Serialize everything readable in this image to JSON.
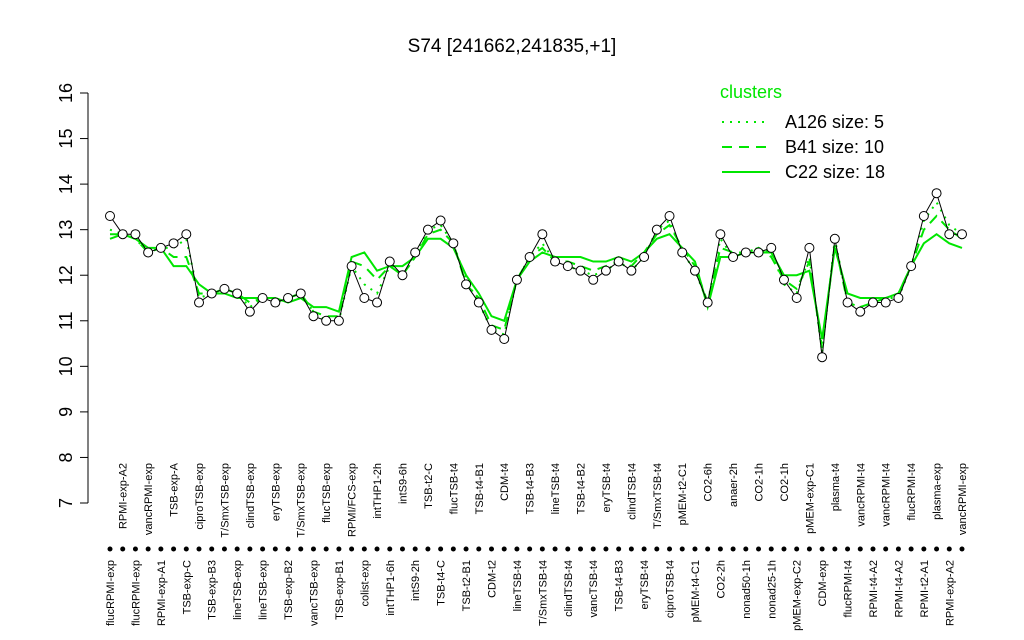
{
  "chart_data": {
    "type": "line",
    "title": "S74 [241662,241835,+1]",
    "categories": [
      "flucRPMI-exp",
      "RPMI-exp-A2",
      "flucRPMI-exp",
      "vancRPMI-exp",
      "RPMI-exp-A1",
      "TSB-exp-A",
      "TSB-exp-C",
      "ciproTSB-exp",
      "TSB-exp-B3",
      "T/SmxTSB-exp",
      "lineTSB-exp",
      "clindTSB-exp",
      "lineTSB-exp",
      "eryTSB-exp",
      "TSB-exp-B2",
      "T/SmxTSB-exp",
      "vancTSB-exp",
      "flucTSB-exp",
      "TSB-exp-B1",
      "RPMI/FCS-exp",
      "colist-exp",
      "intTHP1-2h",
      "intTHP1-6h",
      "intS9-6h",
      "intS9-2h",
      "TSB-t2-C",
      "TSB-t4-C",
      "flucTSB-t4",
      "TSB-t2-B1",
      "TSB-t4-B1",
      "CDM-t2",
      "CDM-t4",
      "lineTSB-t4",
      "TSB-t4-B3",
      "T/SmxTSB-t4",
      "lineTSB-t4",
      "clindTSB-t4",
      "TSB-t4-B2",
      "vancTSB-t4",
      "eryTSB-t4",
      "TSB-t4-B3",
      "clindTSB-t4",
      "eryTSB-t4",
      "T/SmxTSB-t4",
      "ciproTSB-t4",
      "pMEM-t2-C1",
      "pMEM-t4-C1",
      "CO2-6h",
      "CO2-2h",
      "anaer-2h",
      "nonad50-1h",
      "CO2-1h",
      "nonad25-1h",
      "CO2-1h",
      "pMEM-exp-C2",
      "pMEM-exp-C1",
      "CDM-exp",
      "plasma-t4",
      "flucRPMI-t4",
      "vancRPMI-t4",
      "RPMI-t4-A2",
      "vancRPMI-t4",
      "RPMI-t4-A2",
      "flucRPMI-t4",
      "RPMI-t2-A1",
      "plasma-exp",
      "RPMI-exp-A2",
      "vancRPMI-exp"
    ],
    "points": [
      13.3,
      12.9,
      12.9,
      12.5,
      12.6,
      12.7,
      12.9,
      11.4,
      11.6,
      11.7,
      11.6,
      11.2,
      11.5,
      11.4,
      11.5,
      11.6,
      11.1,
      11.0,
      11.0,
      12.2,
      11.5,
      11.4,
      12.3,
      12.0,
      12.5,
      13.0,
      13.2,
      12.7,
      11.8,
      11.4,
      10.8,
      10.6,
      11.9,
      12.4,
      12.9,
      12.3,
      12.2,
      12.1,
      11.9,
      12.1,
      12.3,
      12.1,
      12.4,
      13.0,
      13.3,
      12.5,
      12.1,
      11.4,
      12.9,
      12.4,
      12.5,
      12.5,
      12.6,
      11.9,
      11.5,
      12.6,
      10.2,
      12.8,
      11.4,
      11.2,
      11.4,
      11.4,
      11.5,
      12.2,
      13.3,
      13.8,
      12.9,
      12.9
    ],
    "ylim": [
      7,
      16
    ],
    "yticks": [
      7,
      8,
      9,
      10,
      11,
      12,
      13,
      14,
      15,
      16
    ],
    "legend_title": "clusters",
    "series": [
      {
        "name": "A126 size: 5",
        "color": "#00e600",
        "dash": "dotted",
        "values": [
          13.0,
          12.9,
          12.8,
          12.5,
          12.6,
          12.6,
          12.8,
          11.5,
          11.6,
          11.7,
          11.6,
          11.3,
          11.5,
          11.4,
          11.5,
          11.6,
          11.2,
          11.0,
          11.0,
          12.2,
          11.8,
          11.6,
          12.2,
          12.0,
          12.4,
          13.0,
          13.1,
          12.7,
          11.9,
          11.4,
          10.8,
          10.7,
          11.9,
          12.4,
          12.7,
          12.3,
          12.2,
          12.1,
          12.0,
          12.1,
          12.3,
          12.1,
          12.4,
          13.0,
          13.2,
          12.5,
          12.1,
          11.4,
          12.8,
          12.4,
          12.5,
          12.6,
          12.5,
          11.8,
          11.6,
          12.4,
          10.3,
          12.8,
          11.4,
          11.3,
          11.4,
          11.5,
          11.5,
          12.2,
          13.2,
          13.6,
          13.1,
          12.9
        ]
      },
      {
        "name": "B41 size: 10",
        "color": "#00e600",
        "dash": "dashed",
        "values": [
          12.9,
          12.9,
          12.8,
          12.5,
          12.6,
          12.4,
          12.4,
          11.6,
          11.6,
          11.7,
          11.6,
          11.4,
          11.5,
          11.4,
          11.5,
          11.6,
          11.2,
          11.1,
          11.1,
          12.3,
          12.2,
          11.9,
          12.2,
          12.0,
          12.4,
          12.9,
          13.0,
          12.7,
          11.8,
          11.5,
          10.9,
          10.8,
          11.9,
          12.4,
          12.6,
          12.3,
          12.3,
          12.2,
          12.1,
          12.2,
          12.3,
          12.2,
          12.5,
          12.9,
          13.1,
          12.6,
          12.2,
          11.4,
          12.6,
          12.5,
          12.5,
          12.6,
          12.4,
          11.9,
          11.7,
          12.3,
          10.4,
          12.7,
          11.4,
          11.3,
          11.4,
          11.5,
          11.6,
          12.2,
          13.0,
          13.3,
          13.0,
          12.8
        ]
      },
      {
        "name": "C22 size: 18",
        "color": "#00e600",
        "dash": "solid",
        "values": [
          12.8,
          12.9,
          12.8,
          12.6,
          12.6,
          12.2,
          12.2,
          11.8,
          11.6,
          11.6,
          11.5,
          11.5,
          11.5,
          11.5,
          11.4,
          11.5,
          11.3,
          11.3,
          11.2,
          12.4,
          12.5,
          12.1,
          12.2,
          12.2,
          12.4,
          12.8,
          12.8,
          12.6,
          12.0,
          11.6,
          11.1,
          11.0,
          11.9,
          12.3,
          12.5,
          12.4,
          12.4,
          12.4,
          12.3,
          12.3,
          12.4,
          12.3,
          12.5,
          12.8,
          12.9,
          12.6,
          12.3,
          11.3,
          12.4,
          12.4,
          12.5,
          12.5,
          12.5,
          12.0,
          12.0,
          12.1,
          10.6,
          12.6,
          11.6,
          11.5,
          11.5,
          11.5,
          11.6,
          12.2,
          12.7,
          12.9,
          12.7,
          12.6
        ]
      }
    ]
  }
}
